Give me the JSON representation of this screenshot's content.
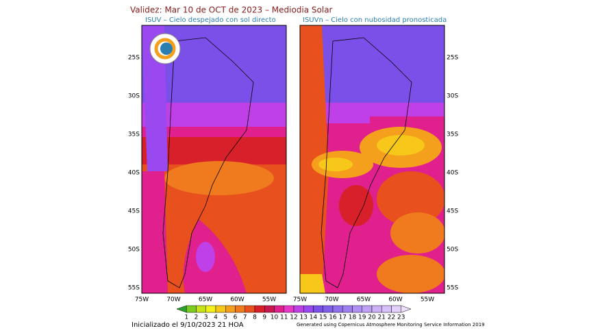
{
  "header": {
    "title": "Validez: Mar 10 de OCT de 2023 – Mediodia Solar"
  },
  "panels": [
    {
      "label": "ISUV – Cielo despejado con sol directo",
      "lat_labels": [
        "25S",
        "30S",
        "35S",
        "40S",
        "45S",
        "50S",
        "55S"
      ],
      "lon_labels": [
        "75W",
        "70W",
        "65W",
        "60W",
        "55W"
      ]
    },
    {
      "label": "ISUVn – Cielo con nubosidad pronosticada",
      "lat_labels": [
        "25S",
        "30S",
        "35S",
        "40S",
        "45S",
        "50S",
        "55S"
      ],
      "lon_labels": [
        "75W",
        "70W",
        "65W",
        "60W",
        "55W"
      ]
    }
  ],
  "colorbar": {
    "labels": [
      "1",
      "2",
      "3",
      "4",
      "5",
      "6",
      "7",
      "8",
      "9",
      "10",
      "11",
      "12",
      "13",
      "14",
      "15",
      "16",
      "17",
      "18",
      "19",
      "20",
      "21",
      "22",
      "23"
    ],
    "colors": [
      "#2ca02c",
      "#7ccd1f",
      "#c7e31a",
      "#f2f21a",
      "#f7c81a",
      "#f5a01c",
      "#f07a1e",
      "#e8501e",
      "#d8202a",
      "#c81850",
      "#e0208c",
      "#e838c8",
      "#c040e8",
      "#9a48f0",
      "#7a50e8",
      "#8060e8",
      "#9070ec",
      "#a080f0",
      "#b090f2",
      "#c0a0f4",
      "#ccb0f6",
      "#d8c0f8",
      "#e4d0fa",
      "#eee0fc"
    ]
  },
  "footer": {
    "left": "Inicializado el 9/10/2023 21 HOA",
    "right": "Generated using Copernicus Atmosphere Monitoring Service Information 2019"
  }
}
